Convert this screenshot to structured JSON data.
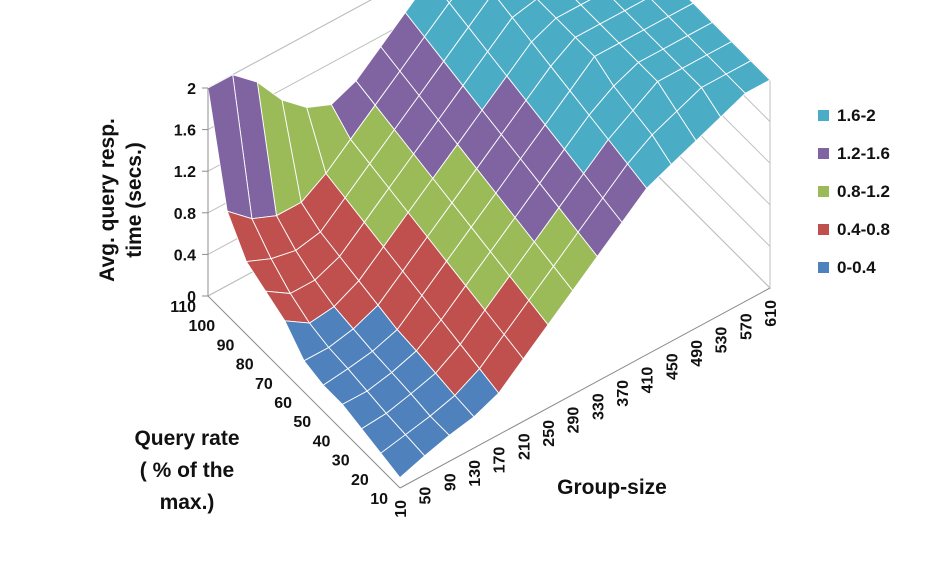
{
  "chart_data": {
    "type": "surface",
    "title": "",
    "xlabel": "Group-size",
    "ylabel": "Query rate ( % of the max.)",
    "zlabel": "Avg. query resp. time (secs.)",
    "axis_titles": {
      "z": [
        "Avg. query resp.",
        "time (secs.)"
      ],
      "y": [
        "Query rate",
        "( % of the",
        "max.)"
      ],
      "x": [
        "Group-size"
      ]
    },
    "x_ticks": [
      "10",
      "50",
      "90",
      "130",
      "170",
      "210",
      "250",
      "290",
      "330",
      "370",
      "410",
      "450",
      "490",
      "530",
      "570",
      "610"
    ],
    "y_ticks": [
      "10",
      "20",
      "30",
      "40",
      "50",
      "60",
      "70",
      "80",
      "90",
      "100",
      "110"
    ],
    "z_ticks": [
      "0",
      "0.4",
      "0.8",
      "1.2",
      "1.6",
      "2"
    ],
    "zlim": [
      0,
      2
    ],
    "legend_position": "right",
    "bands": [
      {
        "name": "1.6-2",
        "color": "#4bacc6"
      },
      {
        "name": "1.2-1.6",
        "color": "#8064a2"
      },
      {
        "name": "0.8-1.2",
        "color": "#9bbb59"
      },
      {
        "name": "0.4-0.8",
        "color": "#c0504d"
      },
      {
        "name": "0-0.4",
        "color": "#4f81bd"
      }
    ],
    "surface_columns_x": [
      10,
      50,
      90,
      130,
      170,
      210,
      250,
      290,
      330,
      370,
      410,
      450,
      490,
      530,
      570,
      610
    ],
    "surface_rows_y": [
      10,
      20,
      30,
      40,
      50,
      60,
      70,
      80,
      90,
      100,
      110
    ],
    "surface_z": [
      [
        0.1,
        0.18,
        0.25,
        0.3,
        0.4,
        0.6,
        0.8,
        1.0,
        1.2,
        1.4,
        1.6,
        1.7,
        1.8,
        1.9,
        2.0,
        2.0
      ],
      [
        0.15,
        0.2,
        0.25,
        0.32,
        0.45,
        0.65,
        0.85,
        1.05,
        1.25,
        1.45,
        1.65,
        1.8,
        1.9,
        2.0,
        2.0,
        2.0
      ],
      [
        0.2,
        0.22,
        0.28,
        0.35,
        0.5,
        0.7,
        0.9,
        1.1,
        1.3,
        1.5,
        1.7,
        1.85,
        2.0,
        2.0,
        2.0,
        2.0
      ],
      [
        0.25,
        0.25,
        0.3,
        0.38,
        0.55,
        0.75,
        0.95,
        1.15,
        1.35,
        1.55,
        1.75,
        1.9,
        2.0,
        2.0,
        2.0,
        2.0
      ],
      [
        0.25,
        0.28,
        0.32,
        0.4,
        0.6,
        0.8,
        1.0,
        1.2,
        1.4,
        1.6,
        1.8,
        2.0,
        2.0,
        2.0,
        2.0,
        2.0
      ],
      [
        0.3,
        0.3,
        0.35,
        0.45,
        0.65,
        0.85,
        1.05,
        1.25,
        1.45,
        1.65,
        1.85,
        2.0,
        2.0,
        2.0,
        2.0,
        2.0
      ],
      [
        0.5,
        0.35,
        0.38,
        0.5,
        0.7,
        0.9,
        1.1,
        1.3,
        1.5,
        1.7,
        1.9,
        2.0,
        2.0,
        2.0,
        2.0,
        2.0
      ],
      [
        0.6,
        0.45,
        0.45,
        0.55,
        0.75,
        0.95,
        1.15,
        1.35,
        1.55,
        1.75,
        1.95,
        2.0,
        2.0,
        2.0,
        2.0,
        2.0
      ],
      [
        0.7,
        0.6,
        0.55,
        0.6,
        0.8,
        1.0,
        1.2,
        1.4,
        1.6,
        1.8,
        2.0,
        2.0,
        2.0,
        2.0,
        2.0,
        2.0
      ],
      [
        1.0,
        0.8,
        0.7,
        0.7,
        0.85,
        1.05,
        1.25,
        1.45,
        1.65,
        1.85,
        2.0,
        2.0,
        2.0,
        2.0,
        2.0,
        2.0
      ],
      [
        2.0,
        2.0,
        1.8,
        1.5,
        1.3,
        1.2,
        1.3,
        1.5,
        1.7,
        1.9,
        2.0,
        2.0,
        2.0,
        2.0,
        2.0,
        2.0
      ]
    ]
  }
}
